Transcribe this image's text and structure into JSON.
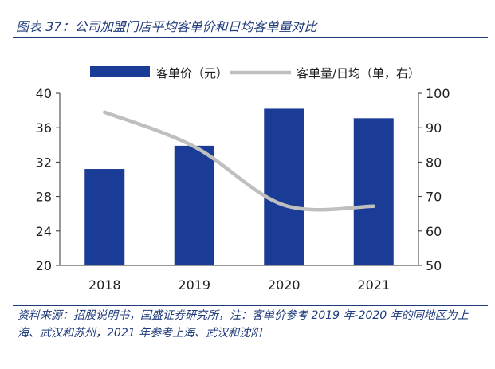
{
  "title": "图表 37：公司加盟门店平均客单价和日均客单量对比",
  "source_note": "资料来源：招股说明书，国盛证券研究所，注：客单价参考 2019 年-2020 年的同地区为上海、武汉和苏州，2021 年参考上海、武汉和沈阳",
  "colors": {
    "bar": "#1a3c96",
    "line": "#bfbfbf",
    "accent": "#1f3a7a"
  },
  "chart_data": {
    "type": "bar",
    "categories": [
      "2018",
      "2019",
      "2020",
      "2021"
    ],
    "series": [
      {
        "name": "客单价（元）",
        "type": "bar",
        "axis": "left",
        "values": [
          31.2,
          33.9,
          38.2,
          37.1
        ]
      },
      {
        "name": "客单量/日均（单，右）",
        "type": "line",
        "axis": "right",
        "values": [
          94.5,
          84.5,
          67.5,
          67.2
        ]
      }
    ],
    "y_left": {
      "min": 20,
      "max": 40,
      "ticks": [
        20,
        24,
        28,
        32,
        36,
        40
      ]
    },
    "y_right": {
      "min": 50,
      "max": 100,
      "ticks": [
        50,
        60,
        70,
        80,
        90,
        100
      ]
    },
    "legend": [
      "客单价（元）",
      "客单量/日均（单，右）"
    ],
    "legend_position": "top",
    "grid": false
  }
}
